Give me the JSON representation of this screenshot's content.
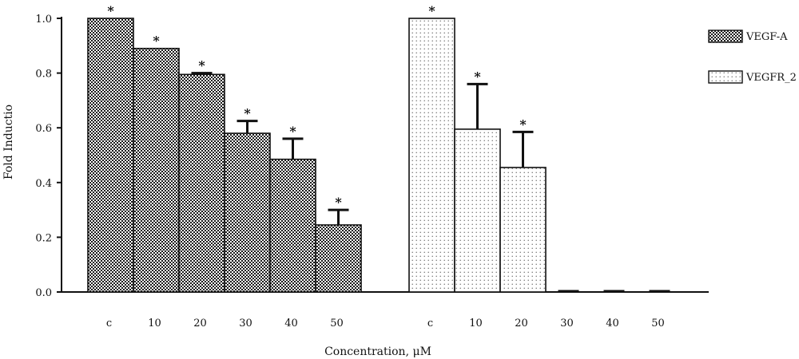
{
  "chart_data": {
    "type": "bar",
    "xlabel": "Concentration, μM",
    "ylabel": "Fold Inductio",
    "ylim": [
      0,
      1.0
    ],
    "yticks": [
      "0.0",
      "0.2",
      "0.4",
      "0.6",
      "0.8",
      "1.0"
    ],
    "grid": false,
    "legend_position": "top-right",
    "groups": [
      {
        "name": "VEGF-A",
        "pattern": "checker",
        "categories": [
          "c",
          "10",
          "20",
          "30",
          "40",
          "50"
        ],
        "values": [
          1.0,
          0.89,
          0.795,
          0.58,
          0.485,
          0.245
        ],
        "error": [
          0,
          0,
          0.005,
          0.045,
          0.075,
          0.055
        ],
        "significance": [
          "*",
          "*",
          "*",
          "*",
          "*",
          "*"
        ]
      },
      {
        "name": "VEGFR_2",
        "pattern": "dots",
        "categories": [
          "c",
          "10",
          "20",
          "30",
          "40",
          "50"
        ],
        "values": [
          1.0,
          0.595,
          0.455,
          0.0,
          0.0,
          0.0
        ],
        "error": [
          0,
          0.165,
          0.13,
          0.0,
          0.0,
          0.0
        ],
        "significance": [
          "*",
          "*",
          "*",
          "",
          "",
          ""
        ]
      }
    ],
    "colors": {
      "bar_stroke": "#111111",
      "fill_dark": "#1a1a1a",
      "fill_light": "#ffffff"
    }
  }
}
